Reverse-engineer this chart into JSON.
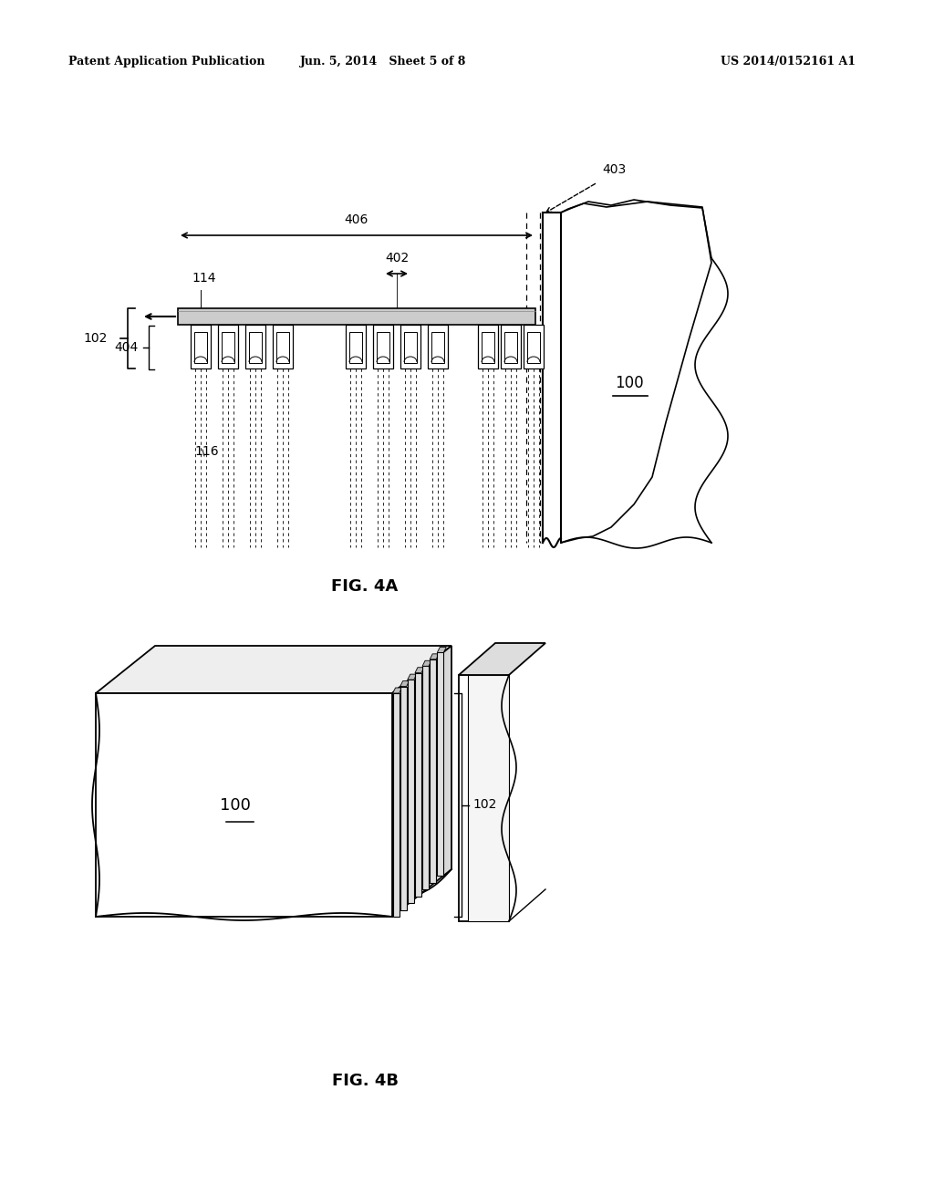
{
  "bg_color": "#ffffff",
  "header_left": "Patent Application Publication",
  "header_center": "Jun. 5, 2014   Sheet 5 of 8",
  "header_right": "US 2014/0152161 A1",
  "fig4a_label": "FIG. 4A",
  "fig4b_label": "FIG. 4B",
  "labels": {
    "100_a": "100",
    "102_a": "102",
    "114": "114",
    "116": "116",
    "402": "402",
    "403": "403",
    "404": "404",
    "406": "406",
    "100_b": "100",
    "102_b": "102"
  }
}
